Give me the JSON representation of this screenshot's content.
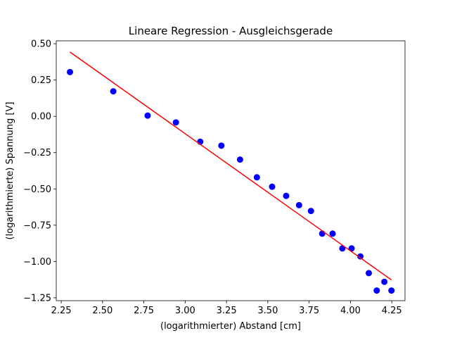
{
  "chart_data": {
    "type": "scatter",
    "title": "Lineare Regression - Ausgleichsgerade",
    "xlabel": "(logarithmierter) Abstand [cm]",
    "ylabel": "(logarithmierte) Spannung [V]",
    "xlim": [
      2.22,
      4.33
    ],
    "ylim": [
      -1.27,
      0.52
    ],
    "grid": false,
    "xticks": [
      {
        "value": 2.25,
        "label": "2.25"
      },
      {
        "value": 2.5,
        "label": "2.50"
      },
      {
        "value": 2.75,
        "label": "2.75"
      },
      {
        "value": 3.0,
        "label": "3.00"
      },
      {
        "value": 3.25,
        "label": "3.25"
      },
      {
        "value": 3.5,
        "label": "3.50"
      },
      {
        "value": 3.75,
        "label": "3.75"
      },
      {
        "value": 4.0,
        "label": "4.00"
      },
      {
        "value": 4.25,
        "label": "4.25"
      }
    ],
    "yticks": [
      {
        "value": 0.5,
        "label": "0.50"
      },
      {
        "value": 0.25,
        "label": "0.25"
      },
      {
        "value": 0.0,
        "label": "0.00"
      },
      {
        "value": -0.25,
        "label": "−0.25"
      },
      {
        "value": -0.5,
        "label": "−0.50"
      },
      {
        "value": -0.75,
        "label": "−0.75"
      },
      {
        "value": -1.0,
        "label": "−1.00"
      },
      {
        "value": -1.25,
        "label": "−1.25"
      }
    ],
    "points": {
      "color": "#0000ff",
      "x": [
        2.303,
        2.565,
        2.773,
        2.944,
        3.091,
        3.219,
        3.332,
        3.434,
        3.526,
        3.611,
        3.689,
        3.761,
        3.829,
        3.892,
        3.951,
        4.007,
        4.06,
        4.111,
        4.159,
        4.205,
        4.248
      ],
      "y": [
        0.305,
        0.172,
        0.005,
        -0.042,
        -0.175,
        -0.202,
        -0.298,
        -0.42,
        -0.485,
        -0.548,
        -0.612,
        -0.652,
        -0.808,
        -0.808,
        -0.91,
        -0.91,
        -0.965,
        -1.08,
        -1.2,
        -1.14,
        -1.2
      ]
    },
    "fit_line": {
      "color": "#ff0000",
      "x": [
        2.303,
        4.248
      ],
      "y": [
        0.443,
        -1.127
      ]
    }
  }
}
